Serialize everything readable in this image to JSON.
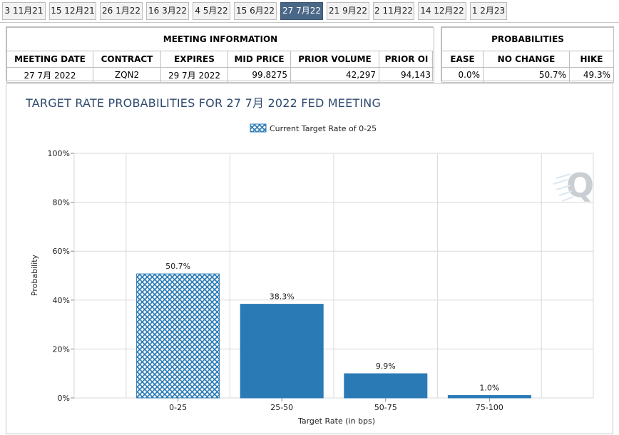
{
  "tabs": [
    {
      "label": "3 11月21",
      "active": false
    },
    {
      "label": "15 12月21",
      "active": false
    },
    {
      "label": "26 1月22",
      "active": false
    },
    {
      "label": "16 3月22",
      "active": false
    },
    {
      "label": "4 5月22",
      "active": false
    },
    {
      "label": "15 6月22",
      "active": false
    },
    {
      "label": "27 7月22",
      "active": true
    },
    {
      "label": "21 9月22",
      "active": false
    },
    {
      "label": "2 11月22",
      "active": false
    },
    {
      "label": "14 12月22",
      "active": false
    },
    {
      "label": "1 2月23",
      "active": false
    }
  ],
  "meeting_info": {
    "heading": "MEETING INFORMATION",
    "columns": [
      "MEETING DATE",
      "CONTRACT",
      "EXPIRES",
      "MID PRICE",
      "PRIOR VOLUME",
      "PRIOR OI"
    ],
    "row": [
      "27 7月 2022",
      "ZQN2",
      "29 7月 2022",
      "99.8275",
      "42,297",
      "94,143"
    ]
  },
  "probabilities": {
    "heading": "PROBABILITIES",
    "columns": [
      "EASE",
      "NO CHANGE",
      "HIKE"
    ],
    "row": [
      "0.0%",
      "50.7%",
      "49.3%"
    ]
  },
  "chart_title": "TARGET RATE PROBABILITIES FOR 27 7月 2022 FED MEETING",
  "chart_data": {
    "type": "bar",
    "categories": [
      "0-25",
      "25-50",
      "50-75",
      "75-100"
    ],
    "values": [
      50.7,
      38.3,
      9.9,
      1.0
    ],
    "value_labels": [
      "50.7%",
      "38.3%",
      "9.9%",
      "1.0%"
    ],
    "highlighted_category": "0-25",
    "xlabel": "Target Rate (in bps)",
    "ylabel": "Probability",
    "ylim": [
      0,
      100
    ],
    "yticks": [
      0,
      20,
      40,
      60,
      80,
      100
    ],
    "ytick_labels": [
      "0%",
      "20%",
      "40%",
      "60%",
      "80%",
      "100%"
    ],
    "legend": {
      "label": "Current Target Rate of 0-25",
      "position": "top-center"
    },
    "grid": true,
    "colors": {
      "bar": "#2a7ab5",
      "hatch": "#2a7ab5",
      "grid": "#d9d9d9",
      "watermark": "#9ea7b0"
    },
    "watermark_icon": "q-logo-icon"
  }
}
